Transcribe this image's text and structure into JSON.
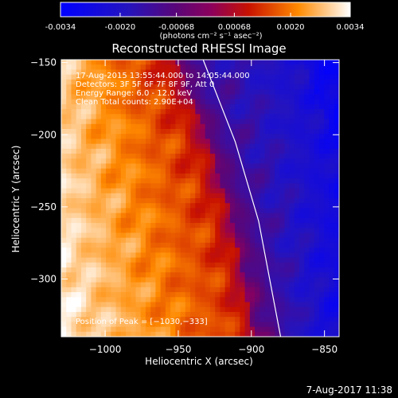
{
  "colorbar": {
    "ticks": [
      "-0.0034",
      "-0.0020",
      "-0.00068",
      "0.00068",
      "0.0020",
      "0.0034"
    ],
    "tick_values": [
      -0.0034,
      -0.002,
      -0.00068,
      0.00068,
      0.002,
      0.0034
    ],
    "units": "(photons cm⁻² s⁻¹ asec⁻²)",
    "range": [
      -0.0034,
      0.0034
    ]
  },
  "chart_data": {
    "type": "heatmap",
    "title": "Reconstructed RHESSI Image",
    "xlabel": "Heliocentric X (arcsec)",
    "ylabel": "Heliocentric Y (arcsec)",
    "xlim": [
      -1030,
      -840
    ],
    "ylim": [
      -340,
      -148
    ],
    "x_ticks": [
      -1000,
      -950,
      -900,
      -850
    ],
    "x_tick_labels": [
      "−1000",
      "−950",
      "−900",
      "−850"
    ],
    "y_ticks": [
      -150,
      -200,
      -250,
      -300
    ],
    "y_tick_labels": [
      "−150",
      "−200",
      "−250",
      "−300"
    ],
    "limb_line": [
      {
        "x": -933,
        "y": -148
      },
      {
        "x": -911,
        "y": -205
      },
      {
        "x": -895,
        "y": -260
      },
      {
        "x": -880,
        "y": -340
      }
    ],
    "peak": {
      "x": -1030,
      "y": -333
    },
    "annotations": [
      "17-Aug-2015 13:55:44.000 to 14:05:44.000",
      "Detectors: 3F 5F 6F 7F 8F 9F, Att 0",
      "Energy Range: 6.0 - 12.0 keV",
      "Clean     Total counts: 2.90E+04"
    ],
    "peak_label": "Position of Peak = [−1030,−333]",
    "color_range": [
      -0.0034,
      0.0034
    ],
    "grid": false
  },
  "footer": {
    "timestamp": "7-Aug-2017 11:38"
  }
}
